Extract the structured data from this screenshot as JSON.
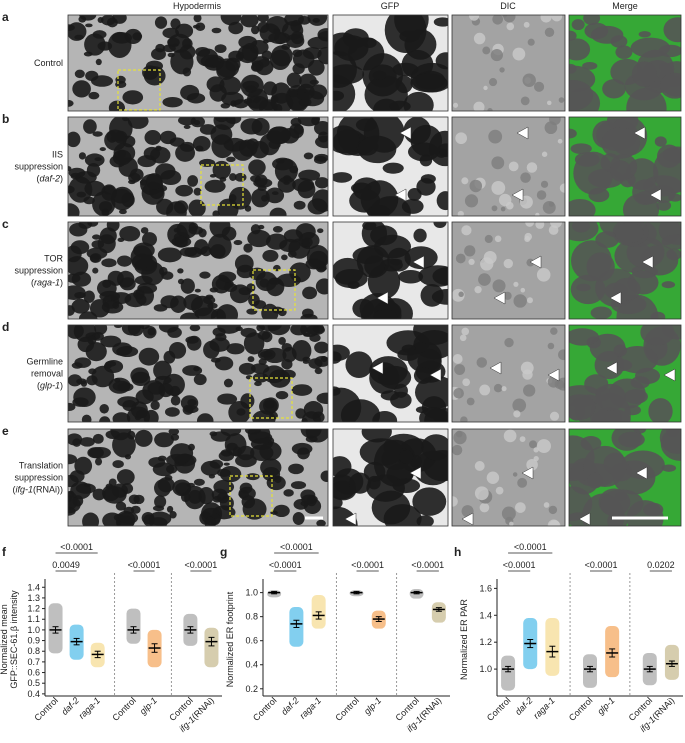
{
  "figure": {
    "column_headers": [
      "Hypodermis",
      "GFP",
      "DIC",
      "Merge"
    ],
    "rows": [
      {
        "letter": "a",
        "label": [
          [
            {
              "text": "Control"
            }
          ]
        ]
      },
      {
        "letter": "b",
        "label": [
          [
            {
              "text": "IIS"
            }
          ],
          [
            {
              "text": "suppression"
            }
          ],
          [
            {
              "text": "("
            },
            {
              "text": "daf-2",
              "italic": true
            },
            {
              "text": ")"
            }
          ]
        ]
      },
      {
        "letter": "c",
        "label": [
          [
            {
              "text": "TOR"
            }
          ],
          [
            {
              "text": "suppression"
            }
          ],
          [
            {
              "text": "("
            },
            {
              "text": "raga-1",
              "italic": true
            },
            {
              "text": ")"
            }
          ]
        ]
      },
      {
        "letter": "d",
        "label": [
          [
            {
              "text": "Germline"
            }
          ],
          [
            {
              "text": "removal"
            }
          ],
          [
            {
              "text": "("
            },
            {
              "text": "glp-1",
              "italic": true
            },
            {
              "text": ")"
            }
          ]
        ]
      },
      {
        "letter": "e",
        "label": [
          [
            {
              "text": "Translation"
            }
          ],
          [
            {
              "text": "suppression"
            }
          ],
          [
            {
              "text": "("
            },
            {
              "text": "ifg-1",
              "italic": true
            },
            {
              "text": "(RNAi))"
            }
          ]
        ]
      }
    ]
  },
  "chart_data": [
    {
      "type": "dot",
      "letter": "f",
      "ylabel": [
        "Normalized mean",
        "GFP::SEC-61.β intensity"
      ],
      "ylim": [
        0.38,
        1.44
      ],
      "yticks": [
        0.4,
        0.5,
        0.6,
        0.7,
        0.8,
        0.9,
        {
          "value": 1,
          "label": "1.0"
        },
        1.1,
        1.2,
        1.3,
        1.4
      ],
      "groups": [
        {
          "categories": [
            [
              {
                "text": "Control"
              }
            ],
            [
              {
                "text": "daf-2",
                "italic": true
              }
            ],
            [
              {
                "text": "raga-1",
                "italic": true
              }
            ]
          ],
          "colors": [
            "#8a8a8a",
            "#1ca8e2",
            "#f2cf70"
          ],
          "values": [
            1.0,
            0.89,
            0.77
          ],
          "errors": [
            0.03,
            0.03,
            0.03
          ],
          "ranges": [
            [
              0.78,
              1.25
            ],
            [
              0.72,
              1.05
            ],
            [
              0.65,
              0.88
            ]
          ],
          "p_values": [
            "0.0049",
            "<0.0001"
          ]
        },
        {
          "categories": [
            [
              {
                "text": "Control"
              }
            ],
            [
              {
                "text": "glp-1",
                "italic": true
              }
            ]
          ],
          "colors": [
            "#8a8a8a",
            "#f08a2a"
          ],
          "values": [
            1.0,
            0.83
          ],
          "errors": [
            0.03,
            0.04
          ],
          "ranges": [
            [
              0.87,
              1.2
            ],
            [
              0.65,
              1.0
            ]
          ],
          "p_values": [
            "<0.0001"
          ]
        },
        {
          "categories": [
            [
              {
                "text": "Control"
              }
            ],
            [
              {
                "text": "ifg-1",
                "italic": true
              },
              {
                "text": "(RNAi)"
              }
            ]
          ],
          "colors": [
            "#8a8a8a",
            "#b5a46b"
          ],
          "values": [
            1.0,
            0.89
          ],
          "errors": [
            0.03,
            0.04
          ],
          "ranges": [
            [
              0.85,
              1.15
            ],
            [
              0.65,
              1.02
            ]
          ],
          "p_values": [
            "<0.0001"
          ]
        }
      ]
    },
    {
      "type": "dot",
      "letter": "g",
      "ylabel": [
        "Normalized ER footprint"
      ],
      "ylim": [
        0.14,
        1.08
      ],
      "yticks": [
        0.2,
        0.4,
        0.6,
        0.8,
        {
          "value": 1,
          "label": "1.0"
        }
      ],
      "groups": [
        {
          "categories": [
            [
              {
                "text": "Control"
              }
            ],
            [
              {
                "text": "daf-2",
                "italic": true
              }
            ],
            [
              {
                "text": "raga-1",
                "italic": true
              }
            ]
          ],
          "colors": [
            "#8a8a8a",
            "#1ca8e2",
            "#f2cf70"
          ],
          "values": [
            1.0,
            0.74,
            0.81
          ],
          "errors": [
            0.01,
            0.03,
            0.03
          ],
          "ranges": [
            [
              0.96,
              1.02
            ],
            [
              0.55,
              0.88
            ],
            [
              0.7,
              0.98
            ]
          ],
          "p_values": [
            "<0.0001",
            "<0.0001"
          ]
        },
        {
          "categories": [
            [
              {
                "text": "Control"
              }
            ],
            [
              {
                "text": "glp-1",
                "italic": true
              }
            ]
          ],
          "colors": [
            "#8a8a8a",
            "#f08a2a"
          ],
          "values": [
            1.0,
            0.78
          ],
          "errors": [
            0.01,
            0.02
          ],
          "ranges": [
            [
              0.97,
              1.02
            ],
            [
              0.7,
              0.85
            ]
          ],
          "p_values": [
            "<0.0001"
          ]
        },
        {
          "categories": [
            [
              {
                "text": "Control"
              }
            ],
            [
              {
                "text": "ifg-1",
                "italic": true
              },
              {
                "text": "(RNAi)"
              }
            ]
          ],
          "colors": [
            "#8a8a8a",
            "#b5a46b"
          ],
          "values": [
            1.0,
            0.86
          ],
          "errors": [
            0.01,
            0.015
          ],
          "ranges": [
            [
              0.95,
              1.03
            ],
            [
              0.75,
              0.92
            ]
          ],
          "p_values": [
            "<0.0001"
          ]
        }
      ]
    },
    {
      "type": "dot",
      "letter": "h",
      "ylabel": [
        "Normalized ER PAR"
      ],
      "ylim": [
        0.8,
        1.64
      ],
      "yticks": [
        {
          "value": 1,
          "label": "1.0"
        },
        1.2,
        1.4,
        1.6
      ],
      "groups": [
        {
          "categories": [
            [
              {
                "text": "Control"
              }
            ],
            [
              {
                "text": "daf-2",
                "italic": true
              }
            ],
            [
              {
                "text": "raga-1",
                "italic": true
              }
            ]
          ],
          "colors": [
            "#8a8a8a",
            "#1ca8e2",
            "#f2cf70"
          ],
          "values": [
            1.0,
            1.19,
            1.13
          ],
          "errors": [
            0.02,
            0.03,
            0.04
          ],
          "ranges": [
            [
              0.84,
              1.1
            ],
            [
              1.0,
              1.38
            ],
            [
              0.95,
              1.38
            ]
          ],
          "p_values": [
            "<0.0001",
            "<0.0001"
          ]
        },
        {
          "categories": [
            [
              {
                "text": "Control"
              }
            ],
            [
              {
                "text": "glp-1",
                "italic": true
              }
            ]
          ],
          "colors": [
            "#8a8a8a",
            "#f08a2a"
          ],
          "values": [
            1.0,
            1.12
          ],
          "errors": [
            0.02,
            0.03
          ],
          "ranges": [
            [
              0.86,
              1.11
            ],
            [
              0.94,
              1.32
            ]
          ],
          "p_values": [
            "<0.0001"
          ]
        },
        {
          "categories": [
            [
              {
                "text": "Control"
              }
            ],
            [
              {
                "text": "ifg-1",
                "italic": true
              },
              {
                "text": "(RNAi)"
              }
            ]
          ],
          "colors": [
            "#8a8a8a",
            "#b5a46b"
          ],
          "values": [
            1.0,
            1.04
          ],
          "errors": [
            0.02,
            0.02
          ],
          "ranges": [
            [
              0.88,
              1.12
            ],
            [
              0.92,
              1.18
            ]
          ],
          "p_values": [
            "0.0202"
          ]
        }
      ]
    }
  ]
}
